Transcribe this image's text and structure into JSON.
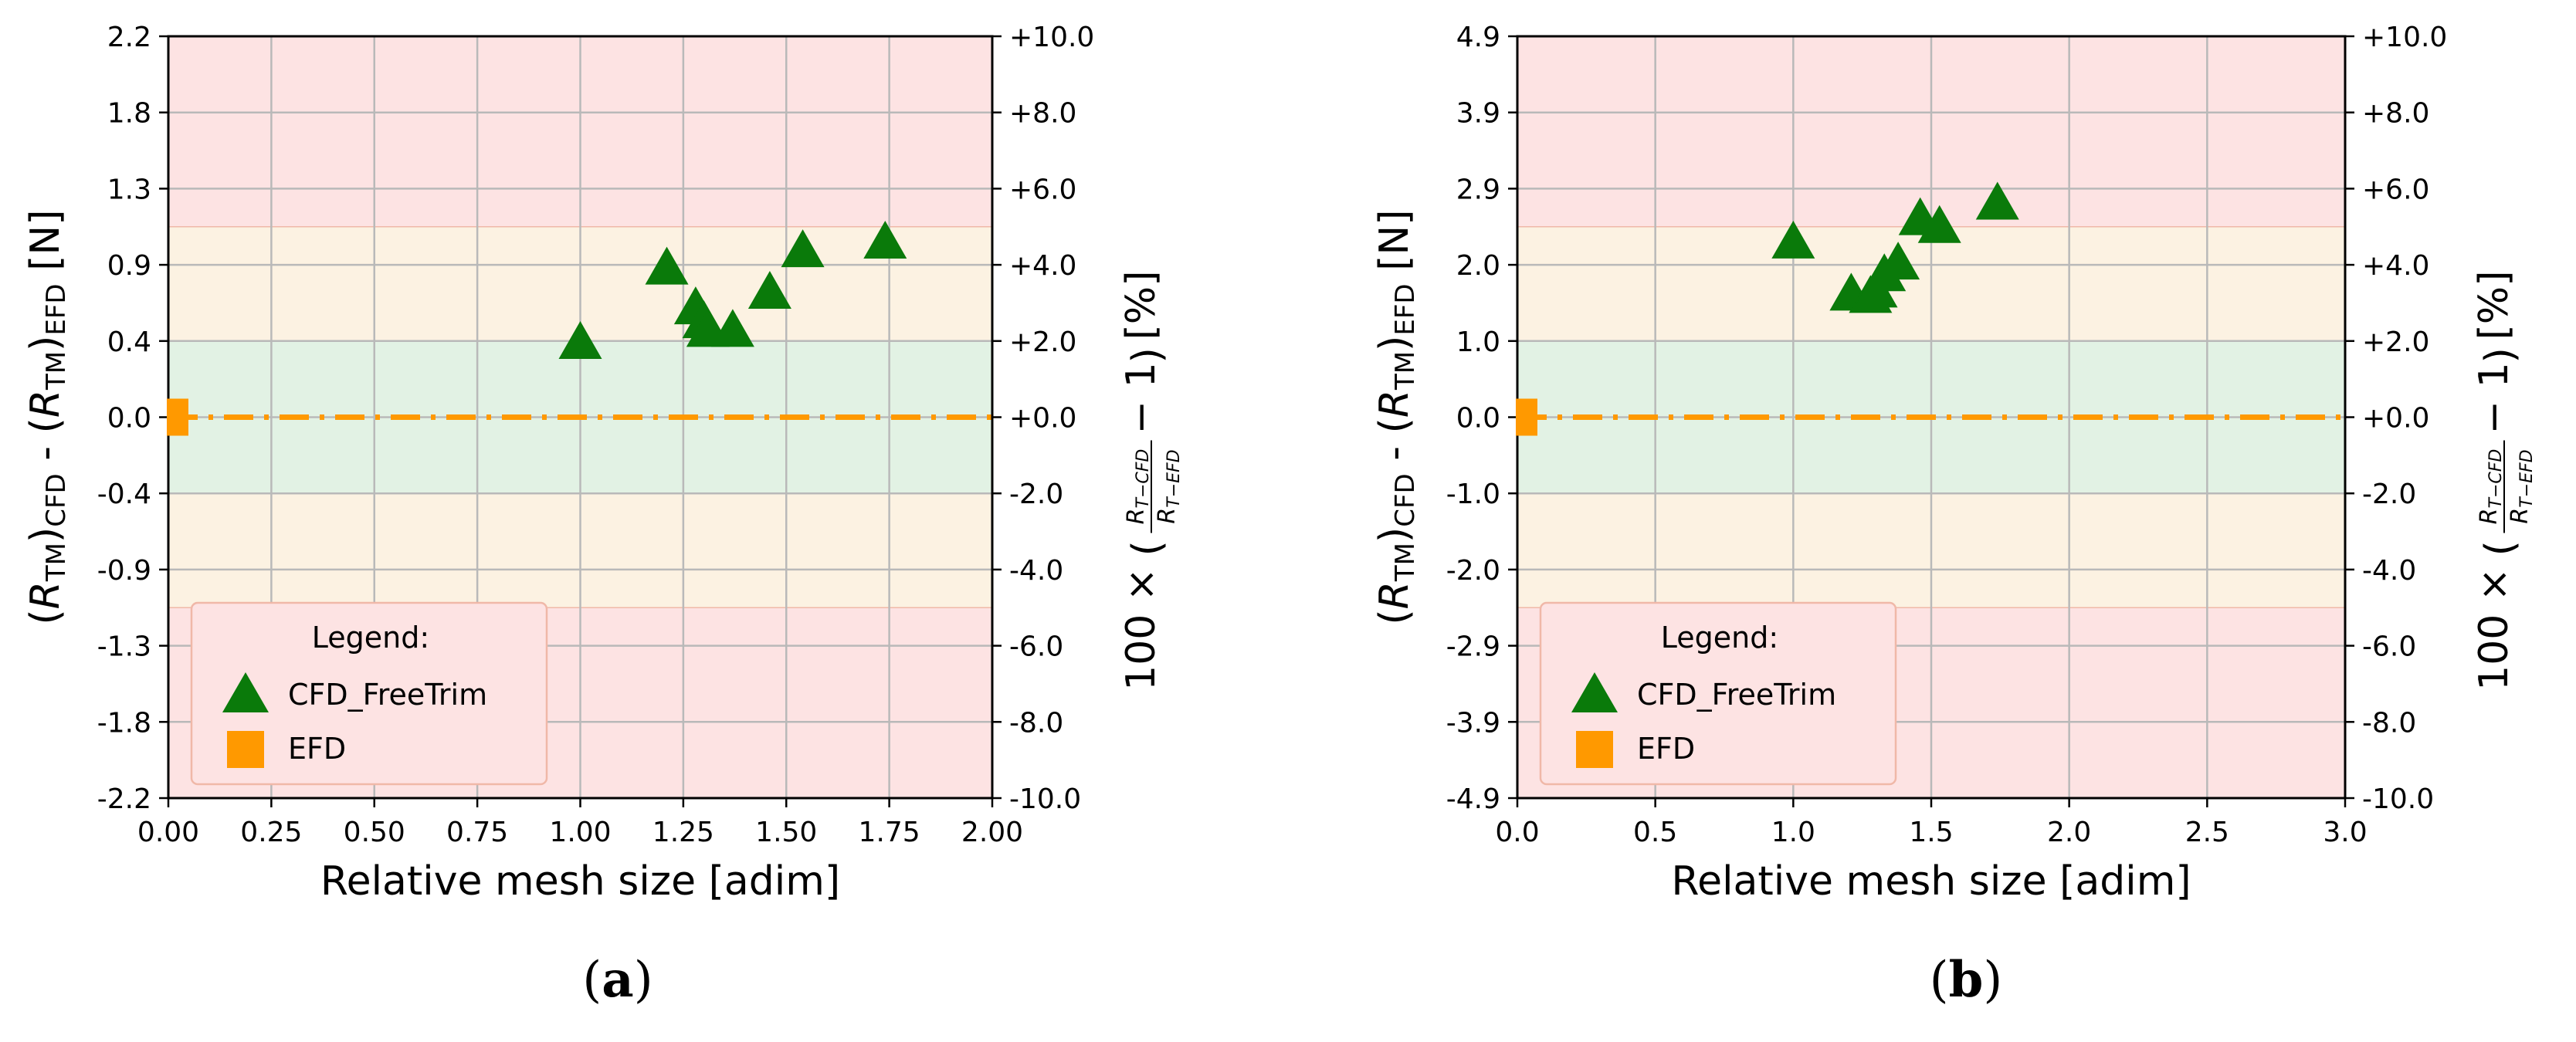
{
  "chart_data": [
    {
      "type": "scatter",
      "panel_label": {
        "open": "(",
        "letter": "a",
        "close": ")"
      },
      "xlabel": "Relative mesh size [adim]",
      "ylabel": {
        "open": "(",
        "r1": "R",
        "sub1": "TM",
        "close1": ")",
        "sub_cfd": "CFD",
        "mid": " - (",
        "r2": "R",
        "sub2": "TM",
        "close2": ")",
        "sub_efd": "EFD",
        "unit": " [N]"
      },
      "y2label": {
        "prefix": "100 × ",
        "numer": "R",
        "numer_sub": "T−CFD",
        "denom": "R",
        "denom_sub": "T−EFD",
        "minus_one": " − 1",
        "unit": " [%]"
      },
      "xlim": [
        0.0,
        2.0
      ],
      "xticks": [
        "0.00",
        "0.25",
        "0.50",
        "0.75",
        "1.00",
        "1.25",
        "1.50",
        "1.75",
        "2.00"
      ],
      "ylim": [
        -2.2,
        2.2
      ],
      "yticks": [
        "-2.2",
        "-1.8",
        "-1.3",
        "-0.9",
        "-0.4",
        "0.0",
        "0.4",
        "0.9",
        "1.3",
        "1.8",
        "2.2"
      ],
      "y2lim": [
        -10.0,
        10.0
      ],
      "y2ticks": [
        "-10.0",
        "-8.0",
        "-6.0",
        "-4.0",
        "-2.0",
        "+0.0",
        "+2.0",
        "+4.0",
        "+6.0",
        "+8.0",
        "+10.0"
      ],
      "bands": [
        {
          "from": -10,
          "to": -5,
          "color": "#fde3e3"
        },
        {
          "from": -5,
          "to": -2,
          "color": "#fcf2e2"
        },
        {
          "from": -2,
          "to": 2,
          "color": "#e2f2e4"
        },
        {
          "from": 2,
          "to": 5,
          "color": "#fcf2e2"
        },
        {
          "from": 5,
          "to": 10,
          "color": "#fde3e3"
        }
      ],
      "grid": true,
      "legend": {
        "title": "Legend:",
        "placement": "lower-left"
      },
      "series": [
        {
          "name": "CFD_FreeTrim",
          "marker": "triangle",
          "color": "#0a7a0a",
          "x": [
            1.0,
            1.21,
            1.28,
            1.3,
            1.31,
            1.37,
            1.46,
            1.54,
            1.74
          ],
          "y": [
            0.43,
            0.86,
            0.63,
            0.55,
            0.5,
            0.5,
            0.72,
            0.96,
            1.01
          ]
        },
        {
          "name": "EFD",
          "marker": "square",
          "color": "#ff9900",
          "x": [
            0.0
          ],
          "y": [
            0.0
          ],
          "reference_line": 0.0
        }
      ]
    },
    {
      "type": "scatter",
      "panel_label": {
        "open": "(",
        "letter": "b",
        "close": ")"
      },
      "xlabel": "Relative mesh size [adim]",
      "ylabel": {
        "open": "(",
        "r1": "R",
        "sub1": "TM",
        "close1": ")",
        "sub_cfd": "CFD",
        "mid": " - (",
        "r2": "R",
        "sub2": "TM",
        "close2": ")",
        "sub_efd": "EFD",
        "unit": " [N]"
      },
      "y2label": {
        "prefix": "100 × ",
        "numer": "R",
        "numer_sub": "T−CFD",
        "denom": "R",
        "denom_sub": "T−EFD",
        "minus_one": " − 1",
        "unit": " [%]"
      },
      "xlim": [
        0.0,
        3.0
      ],
      "xticks": [
        "0.0",
        "0.5",
        "1.0",
        "1.5",
        "2.0",
        "2.5",
        "3.0"
      ],
      "ylim": [
        -4.9,
        4.9
      ],
      "yticks": [
        "-4.9",
        "-3.9",
        "-2.9",
        "-2.0",
        "-1.0",
        "0.0",
        "1.0",
        "2.0",
        "2.9",
        "3.9",
        "4.9"
      ],
      "y2lim": [
        -10.0,
        10.0
      ],
      "y2ticks": [
        "-10.0",
        "-8.0",
        "-6.0",
        "-4.0",
        "-2.0",
        "+0.0",
        "+2.0",
        "+4.0",
        "+6.0",
        "+8.0",
        "+10.0"
      ],
      "bands": [
        {
          "from": -10,
          "to": -5,
          "color": "#fde3e3"
        },
        {
          "from": -5,
          "to": -2,
          "color": "#fcf2e2"
        },
        {
          "from": -2,
          "to": 2,
          "color": "#e2f2e4"
        },
        {
          "from": 2,
          "to": 5,
          "color": "#fcf2e2"
        },
        {
          "from": 5,
          "to": 10,
          "color": "#fde3e3"
        }
      ],
      "grid": true,
      "legend": {
        "title": "Legend:",
        "placement": "lower-left"
      },
      "series": [
        {
          "name": "CFD_FreeTrim",
          "marker": "triangle",
          "color": "#0a7a0a",
          "x": [
            1.0,
            1.21,
            1.28,
            1.3,
            1.33,
            1.38,
            1.46,
            1.53,
            1.74
          ],
          "y": [
            2.25,
            1.58,
            1.55,
            1.62,
            1.83,
            1.98,
            2.55,
            2.45,
            2.75
          ]
        },
        {
          "name": "EFD",
          "marker": "square",
          "color": "#ff9900",
          "x": [
            0.0
          ],
          "y": [
            0.0
          ],
          "reference_line": 0.0
        }
      ]
    }
  ]
}
